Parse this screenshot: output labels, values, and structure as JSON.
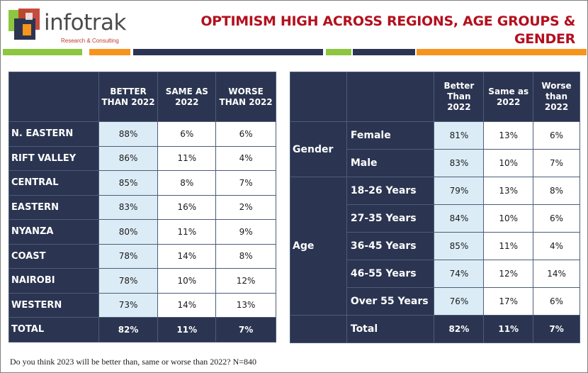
{
  "brand": {
    "name": "infotrak",
    "tagline": "Research & Consulting"
  },
  "title": [
    "OPTIMISM HIGH ACROSS REGIONS, AGE GROUPS &",
    "GENDER"
  ],
  "colors": {
    "navy": "#2b3551",
    "title_red": "#b3101e",
    "green": "#8dc63f",
    "orange": "#f7941d",
    "better_bg": "#dcecf6"
  },
  "regions": {
    "headers": [
      "BETTER THAN 2022",
      "SAME AS 2022",
      "WORSE THAN 2022"
    ],
    "rows": [
      {
        "label": "N. EASTERN",
        "better": "88%",
        "same": "6%",
        "worse": "6%"
      },
      {
        "label": "RIFT VALLEY",
        "better": "86%",
        "same": "11%",
        "worse": "4%"
      },
      {
        "label": "CENTRAL",
        "better": "85%",
        "same": "8%",
        "worse": "7%"
      },
      {
        "label": "EASTERN",
        "better": "83%",
        "same": "16%",
        "worse": "2%"
      },
      {
        "label": "NYANZA",
        "better": "80%",
        "same": "11%",
        "worse": "9%"
      },
      {
        "label": "COAST",
        "better": "78%",
        "same": "14%",
        "worse": "8%"
      },
      {
        "label": "NAIROBI",
        "better": "78%",
        "same": "10%",
        "worse": "12%"
      },
      {
        "label": "WESTERN",
        "better": "73%",
        "same": "14%",
        "worse": "13%"
      }
    ],
    "total": {
      "label": "TOTAL",
      "better": "82%",
      "same": "11%",
      "worse": "7%"
    }
  },
  "demographics": {
    "headers": [
      "Better Than 2022",
      "Same as 2022",
      "Worse than 2022"
    ],
    "gender_label": "Gender",
    "gender_rows": [
      {
        "label": "Female",
        "better": "81%",
        "same": "13%",
        "worse": "6%"
      },
      {
        "label": "Male",
        "better": "83%",
        "same": "10%",
        "worse": "7%"
      }
    ],
    "age_label": "Age",
    "age_rows": [
      {
        "label": "18-26 Years",
        "better": "79%",
        "same": "13%",
        "worse": "8%"
      },
      {
        "label": "27-35 Years",
        "better": "84%",
        "same": "10%",
        "worse": "6%"
      },
      {
        "label": "36-45 Years",
        "better": "85%",
        "same": "11%",
        "worse": "4%"
      },
      {
        "label": "46-55 Years",
        "better": "74%",
        "same": "12%",
        "worse": "14%"
      },
      {
        "label": "Over 55 Years",
        "better": "76%",
        "same": "17%",
        "worse": "6%"
      }
    ],
    "total": {
      "label": "Total",
      "better": "82%",
      "same": "11%",
      "worse": "7%"
    }
  },
  "footnote": "Do you think 2023 will be better than, same or worse than 2022? N=840"
}
